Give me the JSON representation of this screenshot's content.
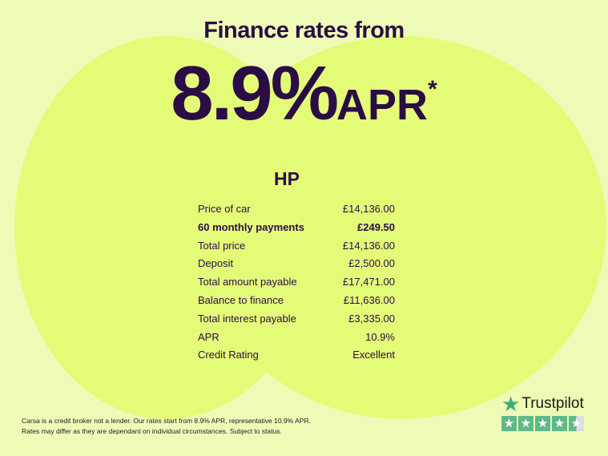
{
  "header": {
    "title": "Finance rates from",
    "rate": "8.9%",
    "rate_suffix": "APR",
    "asterisk": "*"
  },
  "table": {
    "heading": "HP",
    "rows": [
      {
        "label": "Price of car",
        "value": "£14,136.00"
      },
      {
        "label": "60 monthly payments",
        "value": "£249.50",
        "bold": true
      },
      {
        "label": "Total price",
        "value": "£14,136.00"
      },
      {
        "label": "Deposit",
        "value": "£2,500.00"
      },
      {
        "label": "Total amount payable",
        "value": "£17,471.00"
      },
      {
        "label": "Balance to finance",
        "value": "£11,636.00"
      },
      {
        "label": "Total interest payable",
        "value": "£3,335.00"
      },
      {
        "label": "APR",
        "value": "10.9%"
      },
      {
        "label": "Credit Rating",
        "value": "Excellent"
      }
    ]
  },
  "disclaimer": {
    "line1": "Carsa is a credit broker not a lender. Our rates start from 8.9% APR, representative 10.9% APR.",
    "line2": "Rates may differ as they are dependant on individual circumstances. Subject to status."
  },
  "trustpilot": {
    "name": "Trustpilot",
    "rating": 4.5,
    "max": 5,
    "star_color": "#5fb98b"
  },
  "colors": {
    "background": "#eefbb6",
    "blob": "#e4fb78",
    "text": "#2a0d45"
  }
}
